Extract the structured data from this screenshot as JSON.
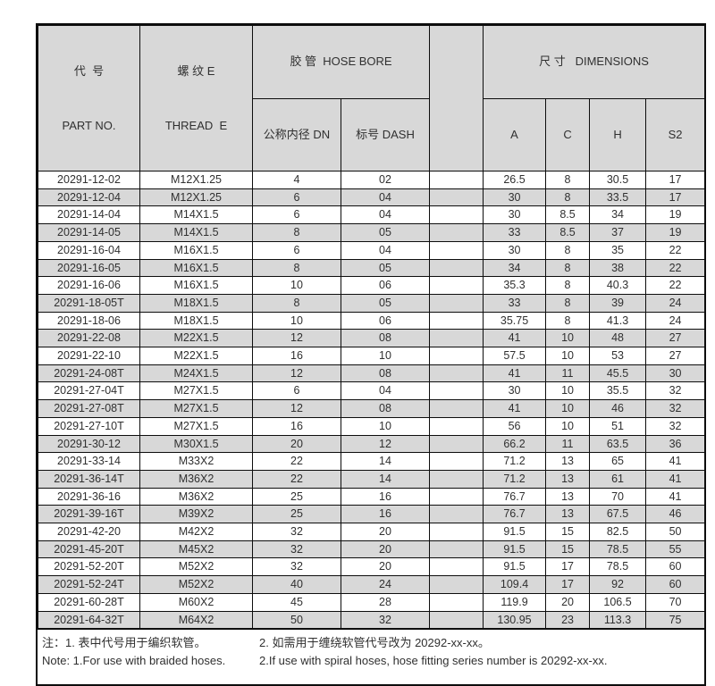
{
  "colors": {
    "page_bg": "#ffffff",
    "header_bg": "#d8d8d8",
    "stripe_bg": "#d8d8d8",
    "border": "#0d0d0d",
    "text": "#303030"
  },
  "table": {
    "header": {
      "part_no_cn": "代  号",
      "part_no_en": "PART NO.",
      "thread_cn": "螺 纹 E",
      "thread_en": "THREAD  E",
      "hose_bore_group": "胶 管  HOSE BORE",
      "dn_label": "公称内径 DN",
      "dash_label": "标号 DASH",
      "dimensions_group": "尺 寸   DIMENSIONS",
      "a_label": "A",
      "c_label": "C",
      "h_label": "H",
      "s2_label": "S2"
    },
    "rows": [
      {
        "part_no": "20291-12-02",
        "thread": "M12X1.25",
        "dn": "4",
        "dash": "02",
        "a": "26.5",
        "c": "8",
        "h": "30.5",
        "s2": "17"
      },
      {
        "part_no": "20291-12-04",
        "thread": "M12X1.25",
        "dn": "6",
        "dash": "04",
        "a": "30",
        "c": "8",
        "h": "33.5",
        "s2": "17"
      },
      {
        "part_no": "20291-14-04",
        "thread": "M14X1.5",
        "dn": "6",
        "dash": "04",
        "a": "30",
        "c": "8.5",
        "h": "34",
        "s2": "19"
      },
      {
        "part_no": "20291-14-05",
        "thread": "M14X1.5",
        "dn": "8",
        "dash": "05",
        "a": "33",
        "c": "8.5",
        "h": "37",
        "s2": "19"
      },
      {
        "part_no": "20291-16-04",
        "thread": "M16X1.5",
        "dn": "6",
        "dash": "04",
        "a": "30",
        "c": "8",
        "h": "35",
        "s2": "22"
      },
      {
        "part_no": "20291-16-05",
        "thread": "M16X1.5",
        "dn": "8",
        "dash": "05",
        "a": "34",
        "c": "8",
        "h": "38",
        "s2": "22"
      },
      {
        "part_no": "20291-16-06",
        "thread": "M16X1.5",
        "dn": "10",
        "dash": "06",
        "a": "35.3",
        "c": "8",
        "h": "40.3",
        "s2": "22"
      },
      {
        "part_no": "20291-18-05T",
        "thread": "M18X1.5",
        "dn": "8",
        "dash": "05",
        "a": "33",
        "c": "8",
        "h": "39",
        "s2": "24"
      },
      {
        "part_no": "20291-18-06",
        "thread": "M18X1.5",
        "dn": "10",
        "dash": "06",
        "a": "35.75",
        "c": "8",
        "h": "41.3",
        "s2": "24"
      },
      {
        "part_no": "20291-22-08",
        "thread": "M22X1.5",
        "dn": "12",
        "dash": "08",
        "a": "41",
        "c": "10",
        "h": "48",
        "s2": "27"
      },
      {
        "part_no": "20291-22-10",
        "thread": "M22X1.5",
        "dn": "16",
        "dash": "10",
        "a": "57.5",
        "c": "10",
        "h": "53",
        "s2": "27"
      },
      {
        "part_no": "20291-24-08T",
        "thread": "M24X1.5",
        "dn": "12",
        "dash": "08",
        "a": "41",
        "c": "11",
        "h": "45.5",
        "s2": "30"
      },
      {
        "part_no": "20291-27-04T",
        "thread": "M27X1.5",
        "dn": "6",
        "dash": "04",
        "a": "30",
        "c": "10",
        "h": "35.5",
        "s2": "32"
      },
      {
        "part_no": "20291-27-08T",
        "thread": "M27X1.5",
        "dn": "12",
        "dash": "08",
        "a": "41",
        "c": "10",
        "h": "46",
        "s2": "32"
      },
      {
        "part_no": "20291-27-10T",
        "thread": "M27X1.5",
        "dn": "16",
        "dash": "10",
        "a": "56",
        "c": "10",
        "h": "51",
        "s2": "32"
      },
      {
        "part_no": "20291-30-12",
        "thread": "M30X1.5",
        "dn": "20",
        "dash": "12",
        "a": "66.2",
        "c": "11",
        "h": "63.5",
        "s2": "36"
      },
      {
        "part_no": "20291-33-14",
        "thread": "M33X2",
        "dn": "22",
        "dash": "14",
        "a": "71.2",
        "c": "13",
        "h": "65",
        "s2": "41"
      },
      {
        "part_no": "20291-36-14T",
        "thread": "M36X2",
        "dn": "22",
        "dash": "14",
        "a": "71.2",
        "c": "13",
        "h": "61",
        "s2": "41"
      },
      {
        "part_no": "20291-36-16",
        "thread": "M36X2",
        "dn": "25",
        "dash": "16",
        "a": "76.7",
        "c": "13",
        "h": "70",
        "s2": "41"
      },
      {
        "part_no": "20291-39-16T",
        "thread": "M39X2",
        "dn": "25",
        "dash": "16",
        "a": "76.7",
        "c": "13",
        "h": "67.5",
        "s2": "46"
      },
      {
        "part_no": "20291-42-20",
        "thread": "M42X2",
        "dn": "32",
        "dash": "20",
        "a": "91.5",
        "c": "15",
        "h": "82.5",
        "s2": "50"
      },
      {
        "part_no": "20291-45-20T",
        "thread": "M45X2",
        "dn": "32",
        "dash": "20",
        "a": "91.5",
        "c": "15",
        "h": "78.5",
        "s2": "55"
      },
      {
        "part_no": "20291-52-20T",
        "thread": "M52X2",
        "dn": "32",
        "dash": "20",
        "a": "91.5",
        "c": "17",
        "h": "78.5",
        "s2": "60"
      },
      {
        "part_no": "20291-52-24T",
        "thread": "M52X2",
        "dn": "40",
        "dash": "24",
        "a": "109.4",
        "c": "17",
        "h": "92",
        "s2": "60"
      },
      {
        "part_no": "20291-60-28T",
        "thread": "M60X2",
        "dn": "45",
        "dash": "28",
        "a": "119.9",
        "c": "20",
        "h": "106.5",
        "s2": "70"
      },
      {
        "part_no": "20291-64-32T",
        "thread": "M64X2",
        "dn": "50",
        "dash": "32",
        "a": "130.95",
        "c": "23",
        "h": "113.3",
        "s2": "75"
      }
    ]
  },
  "notes": {
    "cn1": "注：1. 表中代号用于编织软管。",
    "cn2": "2. 如需用于缠绕软管代号改为 20292-xx-xx。",
    "en1": "Note: 1.For use with braided hoses.",
    "en2": "2.If use with spiral hoses, hose fitting series number is 20292-xx-xx."
  }
}
